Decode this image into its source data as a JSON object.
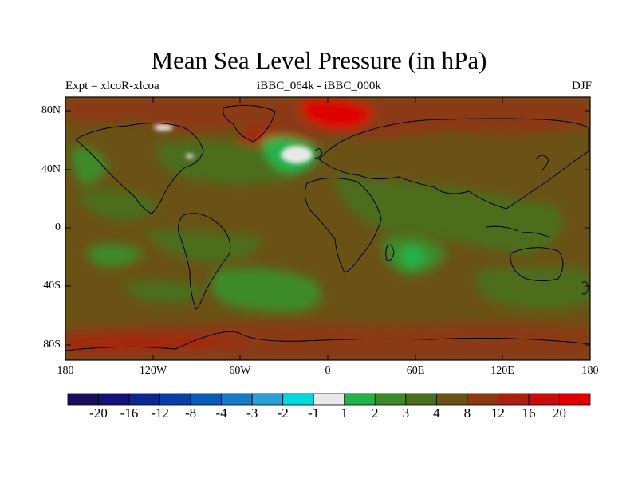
{
  "title": "Mean Sea Level Pressure (in hPa)",
  "subtitle_left": "Expt = xlcoR-xlcoa",
  "subtitle_center": "iBBC_064k - iBBC_000k",
  "subtitle_right": "DJF",
  "y_ticks": [
    "80N",
    "40N",
    "0",
    "40S",
    "80S"
  ],
  "x_ticks": [
    "180",
    "120W",
    "60W",
    "0",
    "60E",
    "120E",
    "180"
  ],
  "colorbar": {
    "labels": [
      "-20",
      "-16",
      "-12",
      "-8",
      "-4",
      "-3",
      "-2",
      "-1",
      "1",
      "2",
      "3",
      "4",
      "8",
      "12",
      "16",
      "20"
    ],
    "colors": [
      "#1a0d5c",
      "#14127a",
      "#0c2890",
      "#0840a8",
      "#0a5ab8",
      "#1a7ac8",
      "#2aa0d6",
      "#00d8e0",
      "#e8e8e8",
      "#22b44a",
      "#3d8a2a",
      "#4b6d1f",
      "#6a5216",
      "#8a3a12",
      "#a82010",
      "#c80c0c",
      "#e00000"
    ]
  },
  "map": {
    "background_color": "#6a5216",
    "features": {
      "arctic_high": "#c80c0c",
      "north_atlantic_low": "#e8e8e8",
      "south_pacific_low": "#3d8a2a",
      "indian_ocean_low": "#22b44a",
      "southern_ocean_high": "#8a3a12"
    }
  }
}
